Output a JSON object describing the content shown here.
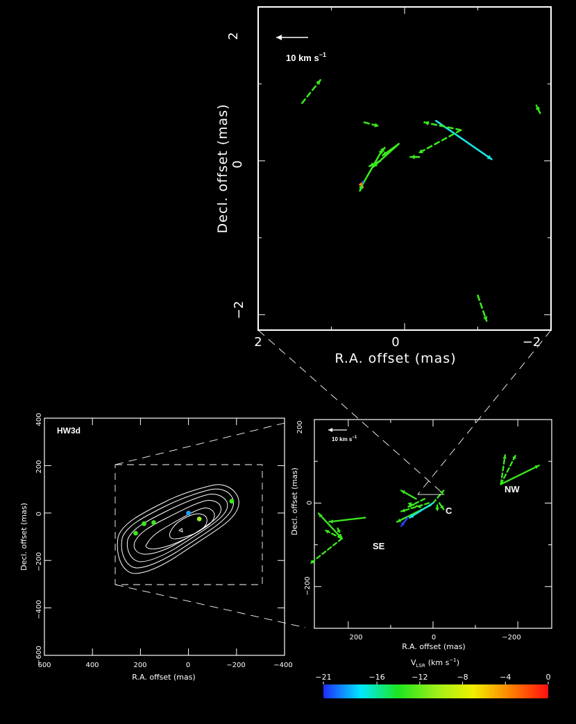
{
  "top_panel": {
    "xlabel": "R.A. offset (mas)",
    "ylabel": "Decl. offset (mas)",
    "xticks": [
      "2",
      "0",
      "−2"
    ],
    "yticks": [
      "2",
      "0",
      "−2"
    ],
    "scale_label": "10 km s",
    "scale_exp": "−1"
  },
  "left_panel": {
    "title": "HW3d",
    "xlabel": "R.A. offset (mas)",
    "ylabel": "Decl. offset (mas)",
    "xticks": [
      "600",
      "400",
      "200",
      "0",
      "−200",
      "−400"
    ],
    "yticks": [
      "400",
      "200",
      "0",
      "−200",
      "−400",
      "−600"
    ]
  },
  "right_panel": {
    "xlabel": "R.A. offset (mas)",
    "ylabel": "Decl. offset (mas)",
    "xticks": [
      "200",
      "0",
      "−200"
    ],
    "yticks": [
      "200",
      "0",
      "−200"
    ],
    "scale_label": "10 km s",
    "scale_exp": "−1",
    "group_labels": [
      "NW",
      "C",
      "SE"
    ]
  },
  "colorbar": {
    "label_main": "V",
    "label_sub": "LSR",
    "label_unit": "(km s",
    "label_exp": "−1",
    "label_close": ")",
    "ticks": [
      "−21",
      "−16",
      "−12",
      "−8",
      "−4",
      "0"
    ],
    "colors": [
      "#1f2bff",
      "#00e8ff",
      "#1ee61e",
      "#9cf01a",
      "#f0f000",
      "#ff8000",
      "#ff1010"
    ]
  },
  "chart_data": [
    {
      "type": "scatter",
      "panel": "top zoom (maser feature vectors)",
      "xlabel": "R.A. offset (mas)",
      "ylabel": "Decl. offset (mas)",
      "xlim": [
        2.0,
        -2.0
      ],
      "ylim": [
        -2.2,
        2.0
      ],
      "vectors": [
        {
          "x": 1.4,
          "y": 0.75,
          "dx": -0.25,
          "dy": 0.3,
          "style": "dashed",
          "color": "#3be61e"
        },
        {
          "x": -1.85,
          "y": 0.62,
          "dx": 0.05,
          "dy": 0.1,
          "style": "dashed",
          "color": "#3be61e"
        },
        {
          "x": -1.0,
          "y": -1.75,
          "dx": -0.12,
          "dy": -0.33,
          "style": "dashed",
          "color": "#3be61e"
        },
        {
          "x": -0.43,
          "y": 0.52,
          "dx": -0.76,
          "dy": -0.5,
          "style": "solid",
          "color": "#19e6e6"
        },
        {
          "x": 0.55,
          "y": 0.5,
          "dx": -0.2,
          "dy": -0.05,
          "style": "dashed",
          "color": "#3be61e"
        },
        {
          "x": -0.77,
          "y": 0.4,
          "dx": 0.5,
          "dy": 0.1,
          "style": "dashed",
          "color": "#3be61e"
        },
        {
          "x": -0.77,
          "y": 0.4,
          "dx": 0.58,
          "dy": -0.3,
          "style": "dashed",
          "color": "#3be61e"
        },
        {
          "x": 0.08,
          "y": 0.22,
          "dx": 0.22,
          "dy": -0.15,
          "style": "solid",
          "color": "#3be61e"
        },
        {
          "x": 0.08,
          "y": 0.22,
          "dx": 0.35,
          "dy": -0.3,
          "style": "solid",
          "color": "#3be61e"
        },
        {
          "x": -0.2,
          "y": 0.05,
          "dx": 0.12,
          "dy": 0.0,
          "style": "dashed",
          "color": "#3be61e"
        },
        {
          "x": 0.32,
          "y": 0.12,
          "dx": -0.05,
          "dy": 0.05,
          "style": "solid",
          "color": "#3be61e"
        },
        {
          "x": 0.6,
          "y": -0.35,
          "dx": -0.3,
          "dy": 0.5,
          "style": "solid",
          "color": "#3be61e"
        },
        {
          "x": 0.33,
          "y": 0.0,
          "dx": 0.15,
          "dy": -0.07,
          "style": "solid",
          "color": "#3be61e"
        },
        {
          "x": 0.6,
          "y": -0.32,
          "dx": -0.03,
          "dy": 0.05,
          "style": "solid",
          "color": "#2a40ff"
        },
        {
          "x": 0.6,
          "y": -0.3,
          "dx": -0.03,
          "dy": -0.04,
          "style": "solid",
          "color": "#ff8000"
        },
        {
          "x": 0.58,
          "y": -0.32,
          "dx": 0.03,
          "dy": -0.07,
          "style": "solid",
          "color": "#3be61e"
        }
      ]
    },
    {
      "type": "scatter",
      "panel": "left (HW3d continuum contours with maser groups)",
      "title": "HW3d",
      "xlabel": "R.A. offset (mas)",
      "ylabel": "Decl. offset (mas)",
      "xlim": [
        600,
        -400
      ],
      "ylim": [
        -600,
        400
      ],
      "points": [
        {
          "x": 0,
          "y": 0,
          "color": "#19a0ff"
        },
        {
          "x": -45,
          "y": -25,
          "color": "#9cf01a"
        },
        {
          "x": -180,
          "y": 50,
          "color": "#3be61e"
        },
        {
          "x": 145,
          "y": -40,
          "color": "#3be61e"
        },
        {
          "x": 185,
          "y": -45,
          "color": "#3be61e"
        },
        {
          "x": 220,
          "y": -85,
          "color": "#3be61e"
        }
      ],
      "zoom_box": {
        "x": [
          310,
          -310
        ],
        "y": [
          -295,
          210
        ]
      }
    },
    {
      "type": "scatter",
      "panel": "right (maser groups NW, C, SE)",
      "xlabel": "R.A. offset (mas)",
      "ylabel": "Decl. offset (mas)",
      "xlim": [
        280,
        -280
      ],
      "ylim": [
        -300,
        200
      ],
      "vectors": [
        {
          "x": -160,
          "y": 45,
          "dx": -90,
          "dy": 45,
          "style": "solid",
          "color": "#3be61e"
        },
        {
          "x": -160,
          "y": 45,
          "dx": -10,
          "dy": 70,
          "style": "dashed",
          "color": "#3be61e"
        },
        {
          "x": -160,
          "y": 45,
          "dx": -35,
          "dy": 70,
          "style": "dashed",
          "color": "#3be61e"
        },
        {
          "x": 0,
          "y": 0,
          "dx": -25,
          "dy": 30,
          "style": "dashed",
          "color": "#3be61e"
        },
        {
          "x": 5,
          "y": -5,
          "dx": 80,
          "dy": -40,
          "style": "solid",
          "color": "#3be61e"
        },
        {
          "x": 10,
          "y": 0,
          "dx": 65,
          "dy": -20,
          "style": "dashed",
          "color": "#3be61e"
        },
        {
          "x": 20,
          "y": 10,
          "dx": 40,
          "dy": -20,
          "style": "dashed",
          "color": "#3be61e"
        },
        {
          "x": 40,
          "y": 10,
          "dx": 35,
          "dy": 20,
          "style": "solid",
          "color": "#3be61e"
        },
        {
          "x": 30,
          "y": -10,
          "dx": 30,
          "dy": 10,
          "style": "dashed",
          "color": "#3be61e"
        },
        {
          "x": -10,
          "y": -5,
          "dx": 0,
          "dy": -15,
          "style": "dashed",
          "color": "#3be61e"
        },
        {
          "x": -15,
          "y": 0,
          "dx": -10,
          "dy": -15,
          "style": "dashed",
          "color": "#3be61e"
        },
        {
          "x": 0,
          "y": 0,
          "dx": 55,
          "dy": -35,
          "style": "solid",
          "color": "#19e6e6"
        },
        {
          "x": 60,
          "y": -35,
          "dx": 15,
          "dy": -20,
          "style": "solid",
          "color": "#2a40ff"
        },
        {
          "x": 160,
          "y": -35,
          "dx": 85,
          "dy": -10,
          "style": "solid",
          "color": "#3be61e"
        },
        {
          "x": 215,
          "y": -85,
          "dx": 55,
          "dy": 60,
          "style": "solid",
          "color": "#3be61e"
        },
        {
          "x": 215,
          "y": -85,
          "dx": 40,
          "dy": 20,
          "style": "dashed",
          "color": "#3be61e"
        },
        {
          "x": 215,
          "y": -85,
          "dx": 75,
          "dy": -60,
          "style": "dashed",
          "color": "#3be61e"
        },
        {
          "x": 215,
          "y": -85,
          "dx": 10,
          "dy": 25,
          "style": "dashed",
          "color": "#3be61e"
        }
      ]
    }
  ]
}
